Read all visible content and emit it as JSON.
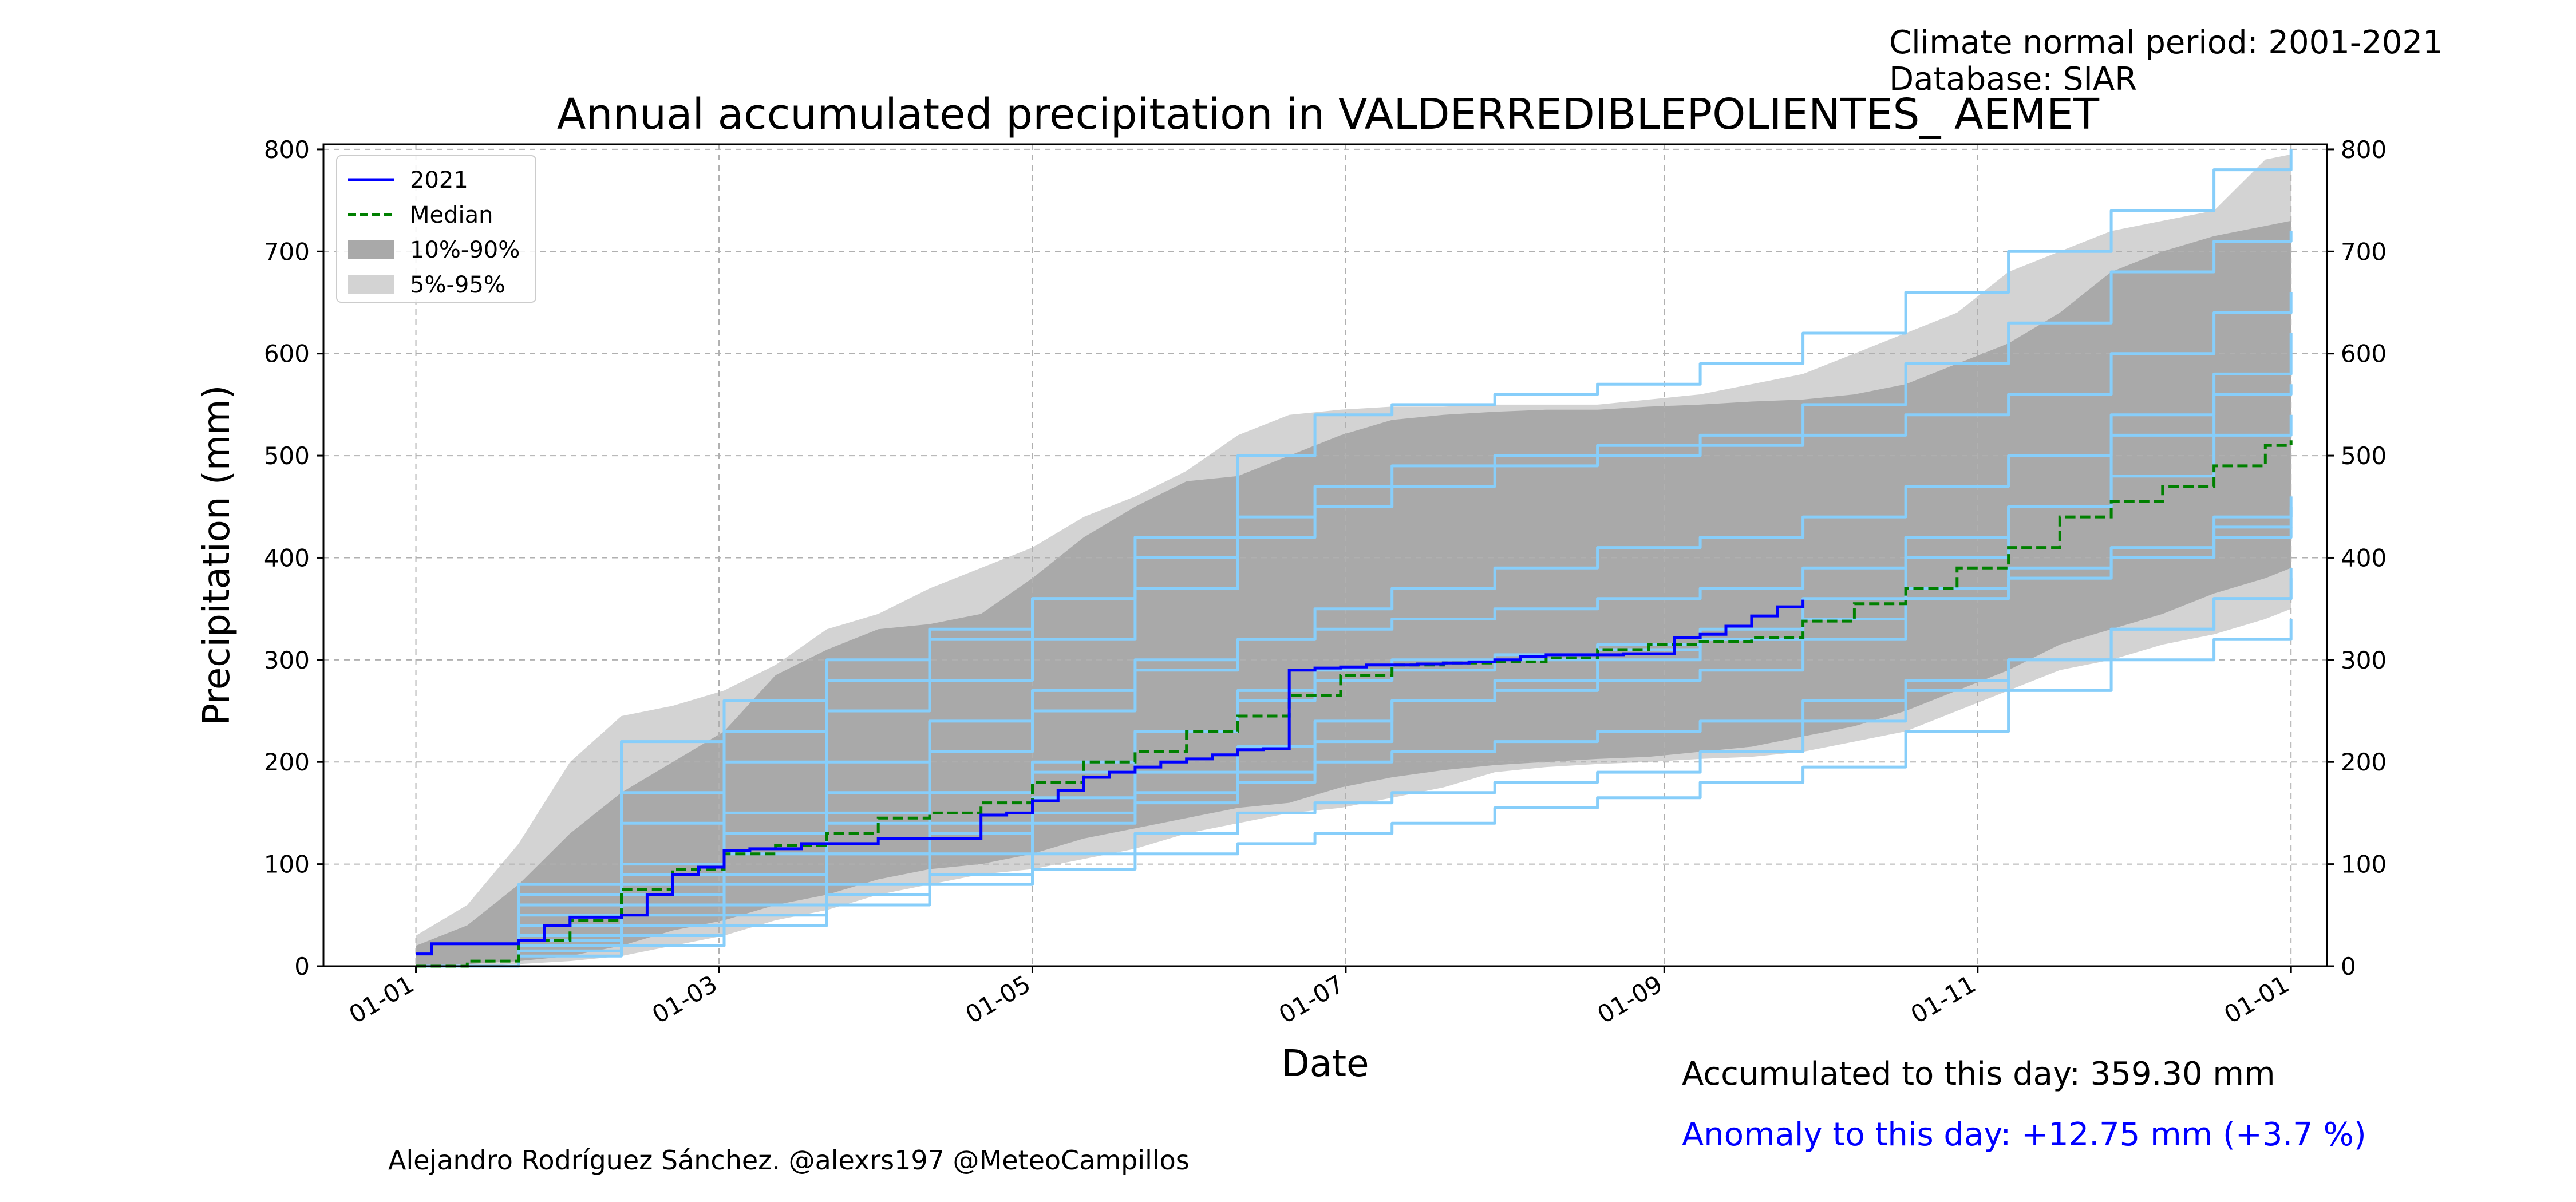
{
  "header": {
    "climate_period": "Climate normal period: 2001-2021",
    "database": "Database: SIAR"
  },
  "footer": {
    "accumulated": "Accumulated to this day: 359.30 mm",
    "anomaly": "Anomaly to this day: +12.75 mm (+3.7 %)",
    "author": "Alejandro Rodríguez Sánchez. @alexrs197 @MeteoCampillos"
  },
  "colors": {
    "current_year": "#0000ff",
    "median": "#008000",
    "band_10_90": "#a9a9a9",
    "band_5_95": "#d3d3d3",
    "historical_years": "#87cefa",
    "anomaly_text": "#0000ff",
    "grid": "#b0b0b0"
  },
  "chart_data": {
    "type": "line",
    "title": "Annual accumulated precipitation in VALDERREDIBLEPOLIENTES_ AEMET",
    "xlabel": "Date",
    "ylabel": "Precipitation (mm)",
    "x_ticks": [
      "01-01",
      "01-03",
      "01-05",
      "01-07",
      "01-09",
      "01-11",
      "01-01"
    ],
    "x_tick_days": [
      0,
      59,
      120,
      181,
      243,
      304,
      365
    ],
    "xlim": [
      -18,
      372
    ],
    "ylim": [
      0,
      805
    ],
    "y_ticks": [
      0,
      100,
      200,
      300,
      400,
      500,
      600,
      700,
      800
    ],
    "grid": true,
    "legend_position": "top-left",
    "legend": [
      "2021",
      "Median",
      "10%-90%",
      "5%-95%"
    ],
    "current_year": {
      "name": "2021",
      "x": [
        0,
        3,
        10,
        20,
        25,
        30,
        40,
        45,
        50,
        55,
        60,
        65,
        75,
        90,
        100,
        110,
        115,
        120,
        125,
        130,
        135,
        140,
        145,
        150,
        155,
        160,
        165,
        170,
        175,
        180,
        185,
        190,
        195,
        200,
        205,
        210,
        215,
        220,
        225,
        230,
        235,
        240,
        245,
        250,
        255,
        260,
        265,
        270
      ],
      "y": [
        12,
        22,
        22,
        25,
        40,
        48,
        50,
        70,
        90,
        97,
        113,
        115,
        120,
        125,
        125,
        148,
        150,
        162,
        172,
        185,
        190,
        195,
        200,
        203,
        207,
        212,
        213,
        290,
        292,
        293,
        295,
        295,
        296,
        297,
        298,
        300,
        303,
        305,
        305,
        305,
        306,
        306,
        322,
        325,
        333,
        343,
        352,
        359
      ]
    },
    "median": {
      "name": "Median",
      "x": [
        0,
        10,
        20,
        30,
        40,
        50,
        60,
        70,
        80,
        90,
        100,
        110,
        120,
        130,
        140,
        150,
        160,
        170,
        180,
        190,
        200,
        210,
        220,
        230,
        240,
        250,
        260,
        270,
        280,
        290,
        300,
        310,
        320,
        330,
        340,
        350,
        360,
        365
      ],
      "y": [
        0,
        5,
        25,
        45,
        75,
        95,
        110,
        118,
        130,
        145,
        150,
        160,
        180,
        200,
        210,
        230,
        245,
        265,
        285,
        295,
        297,
        298,
        302,
        310,
        315,
        318,
        322,
        338,
        355,
        370,
        390,
        410,
        440,
        455,
        470,
        490,
        510,
        515
      ]
    },
    "band_10_90": {
      "name": "10%-90%",
      "x": [
        0,
        10,
        20,
        30,
        40,
        50,
        60,
        70,
        80,
        90,
        100,
        110,
        120,
        130,
        140,
        150,
        160,
        170,
        180,
        190,
        200,
        210,
        220,
        230,
        240,
        250,
        260,
        270,
        280,
        290,
        300,
        310,
        320,
        330,
        340,
        350,
        360,
        365
      ],
      "lower": [
        0,
        2,
        5,
        10,
        20,
        35,
        45,
        60,
        70,
        85,
        95,
        100,
        110,
        125,
        135,
        145,
        155,
        160,
        175,
        185,
        192,
        197,
        200,
        203,
        205,
        210,
        215,
        225,
        235,
        250,
        270,
        290,
        315,
        330,
        345,
        365,
        380,
        390
      ],
      "upper": [
        20,
        40,
        80,
        130,
        170,
        200,
        230,
        285,
        310,
        330,
        335,
        345,
        380,
        420,
        450,
        475,
        480,
        500,
        520,
        535,
        540,
        543,
        545,
        545,
        548,
        550,
        553,
        555,
        560,
        570,
        590,
        610,
        640,
        680,
        700,
        715,
        725,
        730
      ]
    },
    "band_5_95": {
      "name": "5%-95%",
      "x": [
        0,
        10,
        20,
        30,
        40,
        50,
        60,
        70,
        80,
        90,
        100,
        110,
        120,
        130,
        140,
        150,
        160,
        170,
        180,
        190,
        200,
        210,
        220,
        230,
        240,
        250,
        260,
        270,
        280,
        290,
        300,
        310,
        320,
        330,
        340,
        350,
        360,
        365
      ],
      "lower": [
        0,
        0,
        2,
        5,
        10,
        20,
        30,
        45,
        55,
        70,
        80,
        90,
        95,
        105,
        115,
        130,
        140,
        150,
        155,
        165,
        175,
        190,
        195,
        198,
        200,
        203,
        205,
        210,
        220,
        230,
        250,
        270,
        290,
        300,
        315,
        325,
        340,
        350
      ],
      "upper": [
        30,
        60,
        120,
        200,
        245,
        255,
        270,
        295,
        330,
        345,
        370,
        390,
        410,
        440,
        460,
        485,
        520,
        540,
        545,
        548,
        548,
        550,
        550,
        550,
        555,
        560,
        570,
        580,
        600,
        620,
        640,
        680,
        700,
        720,
        730,
        740,
        790,
        795
      ]
    },
    "historical_years": [
      {
        "x": [
          0,
          20,
          40,
          60,
          80,
          100,
          120,
          140,
          160,
          175,
          190,
          210,
          230,
          250,
          270,
          290,
          310,
          330,
          350,
          365
        ],
        "y": [
          0,
          40,
          80,
          130,
          150,
          170,
          190,
          230,
          270,
          290,
          300,
          305,
          315,
          320,
          340,
          370,
          390,
          400,
          420,
          430
        ]
      },
      {
        "x": [
          0,
          20,
          40,
          60,
          80,
          100,
          120,
          140,
          160,
          175,
          190,
          210,
          230,
          250,
          270,
          290,
          310,
          330,
          350,
          365
        ],
        "y": [
          0,
          30,
          60,
          90,
          110,
          130,
          150,
          170,
          190,
          220,
          260,
          270,
          280,
          290,
          320,
          360,
          380,
          400,
          430,
          450
        ]
      },
      {
        "x": [
          0,
          20,
          40,
          60,
          80,
          100,
          120,
          140,
          160,
          175,
          190,
          210,
          230,
          250,
          270,
          290,
          310,
          330,
          350,
          365
        ],
        "y": [
          0,
          60,
          140,
          200,
          250,
          280,
          320,
          370,
          420,
          450,
          470,
          490,
          500,
          510,
          520,
          540,
          560,
          600,
          640,
          660
        ]
      },
      {
        "x": [
          0,
          20,
          40,
          60,
          80,
          100,
          120,
          140,
          160,
          175,
          190,
          210,
          230,
          250,
          270,
          290,
          310,
          330,
          350,
          365
        ],
        "y": [
          0,
          80,
          220,
          260,
          300,
          330,
          360,
          420,
          500,
          540,
          550,
          560,
          570,
          590,
          620,
          660,
          700,
          740,
          780,
          800
        ]
      },
      {
        "x": [
          0,
          20,
          40,
          60,
          80,
          100,
          120,
          140,
          160,
          175,
          190,
          210,
          230,
          250,
          270,
          290,
          310,
          330,
          350,
          365
        ],
        "y": [
          0,
          20,
          40,
          60,
          80,
          110,
          140,
          160,
          180,
          200,
          210,
          220,
          230,
          240,
          260,
          280,
          300,
          330,
          360,
          380
        ]
      },
      {
        "x": [
          0,
          20,
          40,
          60,
          80,
          100,
          120,
          140,
          160,
          175,
          190,
          210,
          230,
          250,
          270,
          290,
          310,
          330,
          350,
          365
        ],
        "y": [
          0,
          10,
          20,
          40,
          60,
          80,
          95,
          110,
          120,
          130,
          140,
          155,
          165,
          180,
          195,
          230,
          270,
          300,
          320,
          340
        ]
      },
      {
        "x": [
          0,
          20,
          40,
          60,
          80,
          100,
          120,
          140,
          160,
          175,
          190,
          210,
          230,
          250,
          270,
          290,
          310,
          330,
          350,
          365
        ],
        "y": [
          0,
          50,
          100,
          150,
          200,
          240,
          270,
          300,
          320,
          330,
          340,
          350,
          360,
          370,
          390,
          420,
          450,
          480,
          520,
          540
        ]
      },
      {
        "x": [
          0,
          20,
          40,
          60,
          80,
          100,
          120,
          140,
          160,
          175,
          190,
          210,
          230,
          250,
          270,
          290,
          310,
          330,
          350,
          365
        ],
        "y": [
          0,
          30,
          70,
          110,
          140,
          170,
          200,
          230,
          260,
          280,
          290,
          300,
          310,
          330,
          360,
          400,
          450,
          520,
          580,
          620
        ]
      },
      {
        "x": [
          0,
          20,
          40,
          60,
          80,
          100,
          120,
          140,
          160,
          175,
          190,
          210,
          230,
          250,
          270,
          290,
          310,
          330,
          350,
          365
        ],
        "y": [
          0,
          40,
          90,
          130,
          170,
          210,
          250,
          290,
          320,
          350,
          370,
          390,
          410,
          420,
          440,
          470,
          500,
          540,
          560,
          570
        ]
      },
      {
        "x": [
          0,
          20,
          40,
          60,
          80,
          100,
          120,
          140,
          160,
          175,
          190,
          210,
          230,
          250,
          270,
          290,
          310,
          330,
          350,
          365
        ],
        "y": [
          0,
          15,
          30,
          50,
          70,
          90,
          110,
          130,
          150,
          160,
          170,
          180,
          190,
          210,
          240,
          270,
          300,
          330,
          360,
          390
        ]
      },
      {
        "x": [
          0,
          20,
          40,
          60,
          80,
          100,
          120,
          140,
          160,
          175,
          190,
          210,
          230,
          250,
          270,
          290,
          310,
          330,
          350,
          365
        ],
        "y": [
          0,
          70,
          170,
          230,
          280,
          320,
          360,
          400,
          440,
          470,
          490,
          500,
          510,
          520,
          550,
          590,
          630,
          680,
          710,
          720
        ]
      },
      {
        "x": [
          0,
          20,
          40,
          60,
          80,
          100,
          120,
          140,
          160,
          175,
          190,
          210,
          230,
          250,
          270,
          290,
          310,
          330,
          350,
          365
        ],
        "y": [
          0,
          25,
          50,
          80,
          110,
          140,
          165,
          190,
          215,
          240,
          260,
          280,
          300,
          320,
          340,
          360,
          380,
          410,
          440,
          460
        ]
      }
    ]
  }
}
